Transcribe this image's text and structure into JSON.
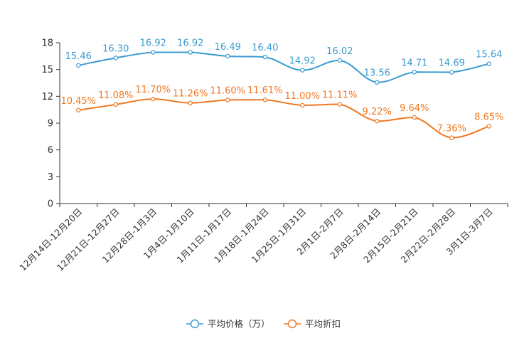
{
  "chart_data": {
    "type": "line",
    "categories": [
      "12月14日-12月20日",
      "12月21日-12月27日",
      "12月28日-1月3日",
      "1月4日-1月10日",
      "1月11日-1月17日",
      "1月18日-1月24日",
      "1月25日-1月31日",
      "2月1日-2月7日",
      "2月8日-2月14日",
      "2月15日-2月21日",
      "2月22日-2月28日",
      "3月1日-3月7日"
    ],
    "ylim": [
      0,
      18
    ],
    "yticks": [
      0,
      3,
      6,
      9,
      12,
      15,
      18
    ],
    "series": [
      {
        "name": "平均价格（万）",
        "color": "#3a9bd0",
        "values": [
          15.46,
          16.3,
          16.92,
          16.92,
          16.49,
          16.4,
          14.92,
          16.02,
          13.56,
          14.71,
          14.69,
          15.64
        ],
        "labels": [
          "15.46",
          "16.30",
          "16.92",
          "16.92",
          "16.49",
          "16.40",
          "14.92",
          "16.02",
          "13.56",
          "14.71",
          "14.69",
          "15.64"
        ]
      },
      {
        "name": "平均折扣",
        "color": "#f07820",
        "values": [
          10.45,
          11.08,
          11.7,
          11.26,
          11.6,
          11.61,
          11.0,
          11.11,
          9.22,
          9.64,
          7.36,
          8.65
        ],
        "labels": [
          "10.45%",
          "11.08%",
          "11.70%",
          "11.26%",
          "11.60%",
          "11.61%",
          "11.00%",
          "11.11%",
          "9.22%",
          "9.64%",
          "7.36%",
          "8.65%"
        ]
      }
    ],
    "legend_position": "bottom-center"
  }
}
